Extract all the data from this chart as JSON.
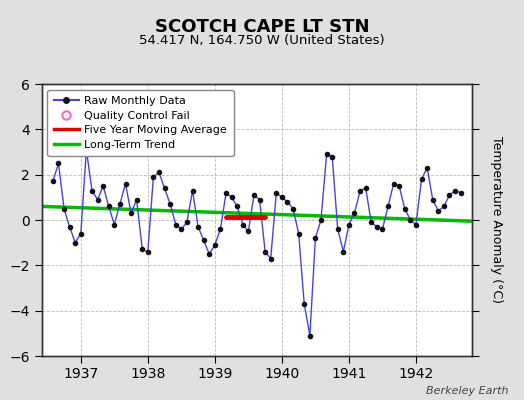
{
  "title": "SCOTCH CAPE LT STN",
  "subtitle": "54.417 N, 164.750 W (United States)",
  "ylabel": "Temperature Anomaly (°C)",
  "watermark": "Berkeley Earth",
  "xlim": [
    1936.42,
    1942.83
  ],
  "ylim": [
    -6,
    6
  ],
  "yticks": [
    -6,
    -4,
    -2,
    0,
    2,
    4,
    6
  ],
  "xticks": [
    1937,
    1938,
    1939,
    1940,
    1941,
    1942
  ],
  "fig_bg_color": "#e0e0e0",
  "plot_bg_color": "#ffffff",
  "raw_color": "#4444dd",
  "raw_marker_color": "#111111",
  "moving_avg_color": "#dd0000",
  "trend_color": "#00bb00",
  "monthly_times": [
    1936.583,
    1936.667,
    1936.75,
    1936.833,
    1936.917,
    1937.0,
    1937.083,
    1937.167,
    1937.25,
    1937.333,
    1937.417,
    1937.5,
    1937.583,
    1937.667,
    1937.75,
    1937.833,
    1937.917,
    1938.0,
    1938.083,
    1938.167,
    1938.25,
    1938.333,
    1938.417,
    1938.5,
    1938.583,
    1938.667,
    1938.75,
    1938.833,
    1938.917,
    1939.0,
    1939.083,
    1939.167,
    1939.25,
    1939.333,
    1939.417,
    1939.5,
    1939.583,
    1939.667,
    1939.75,
    1939.833,
    1939.917,
    1940.0,
    1940.083,
    1940.167,
    1940.25,
    1940.333,
    1940.417,
    1940.5,
    1940.583,
    1940.667,
    1940.75,
    1940.833,
    1940.917,
    1941.0,
    1941.083,
    1941.167,
    1941.25,
    1941.333,
    1941.417,
    1941.5,
    1941.583,
    1941.667,
    1941.75,
    1941.833,
    1941.917,
    1942.0,
    1942.083,
    1942.167,
    1942.25,
    1942.333,
    1942.417,
    1942.5,
    1942.583,
    1942.667
  ],
  "monthly_values": [
    1.7,
    2.5,
    0.5,
    -0.3,
    -1.0,
    -0.6,
    3.1,
    1.3,
    0.9,
    1.5,
    0.6,
    -0.2,
    0.7,
    1.6,
    0.3,
    0.9,
    -1.3,
    -1.4,
    1.9,
    2.1,
    1.4,
    0.7,
    -0.2,
    -0.4,
    -0.1,
    1.3,
    -0.3,
    -0.9,
    -1.5,
    -1.1,
    -0.4,
    1.2,
    1.0,
    0.6,
    -0.2,
    -0.5,
    1.1,
    0.9,
    -1.4,
    -1.7,
    1.2,
    1.0,
    0.8,
    0.5,
    -0.6,
    -3.7,
    -5.1,
    -0.8,
    0.0,
    2.9,
    2.8,
    -0.4,
    -1.4,
    -0.2,
    0.3,
    1.3,
    1.4,
    -0.1,
    -0.3,
    -0.4,
    0.6,
    1.6,
    1.5,
    0.5,
    0.0,
    -0.2,
    1.8,
    2.3,
    0.9,
    0.4,
    0.6,
    1.1,
    1.3,
    1.2
  ],
  "moving_avg_times": [
    1939.167,
    1939.75
  ],
  "moving_avg_values": [
    0.12,
    0.12
  ],
  "trend_times": [
    1936.42,
    1942.83
  ],
  "trend_values": [
    0.6,
    -0.05
  ]
}
